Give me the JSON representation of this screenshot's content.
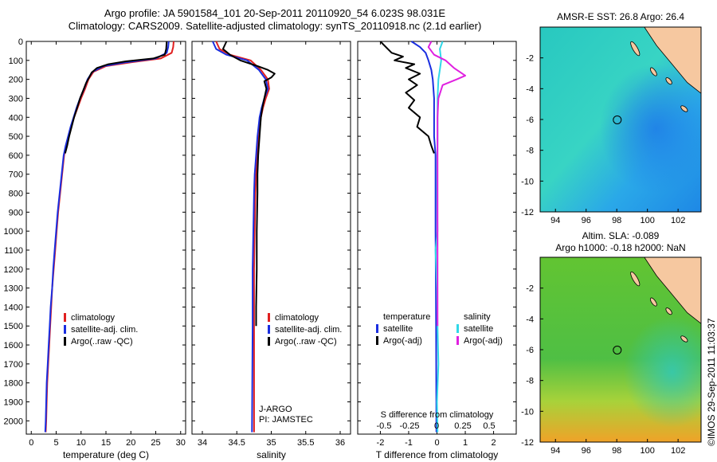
{
  "header": {
    "line1": "Argo profile: JA 5901584_101 20-Sep-2011 20110920_54 6.023S 98.031E",
    "line2": "Climatology: CARS2009. Satellite-adjusted climatology: synTS_20110918.nc (2.1d earlier)"
  },
  "watermark": "©IMOS 29-Sep-2011 11:03:37",
  "colors": {
    "climatology": "#e02020",
    "satellite": "#1a2ee0",
    "argo": "#000000",
    "sal_satellite": "#30d8e8",
    "sal_argo": "#e020e0",
    "land": "#f6c8a0"
  },
  "chart_data": [
    {
      "type": "line",
      "id": "temperature",
      "xlabel": "temperature (deg C)",
      "xlim": [
        -1,
        31
      ],
      "xticks": [
        0,
        5,
        10,
        15,
        20,
        25,
        30
      ],
      "ylim": [
        2070,
        0
      ],
      "yticks": [
        0,
        100,
        200,
        300,
        400,
        500,
        600,
        700,
        800,
        900,
        1000,
        1100,
        1200,
        1300,
        1400,
        1500,
        1600,
        1700,
        1800,
        1900,
        2000
      ],
      "legend": [
        "climatology",
        "satellite-adj. clim.",
        "Argo(..raw -QC)"
      ],
      "series": [
        {
          "name": "climatology",
          "color_key": "climatology",
          "points": [
            [
              28.6,
              0
            ],
            [
              28.5,
              30
            ],
            [
              28.2,
              60
            ],
            [
              26,
              90
            ],
            [
              20,
              110
            ],
            [
              15,
              130
            ],
            [
              12.5,
              160
            ],
            [
              11.5,
              200
            ],
            [
              10.8,
              250
            ],
            [
              10,
              300
            ],
            [
              9.3,
              350
            ],
            [
              8.6,
              400
            ],
            [
              8,
              450
            ],
            [
              7.5,
              500
            ],
            [
              7,
              550
            ],
            [
              6.6,
              600
            ],
            [
              6.2,
              700
            ],
            [
              5.8,
              800
            ],
            [
              5.4,
              900
            ],
            [
              5.1,
              1000
            ],
            [
              4.8,
              1100
            ],
            [
              4.5,
              1200
            ],
            [
              4.2,
              1300
            ],
            [
              4,
              1400
            ],
            [
              3.8,
              1500
            ],
            [
              3.6,
              1600
            ],
            [
              3.4,
              1700
            ],
            [
              3.2,
              1800
            ],
            [
              3.1,
              1900
            ],
            [
              3,
              2000
            ],
            [
              2.9,
              2060
            ]
          ]
        },
        {
          "name": "satellite-adj. clim.",
          "color_key": "satellite",
          "points": [
            [
              27.6,
              0
            ],
            [
              27.5,
              30
            ],
            [
              27.2,
              60
            ],
            [
              25,
              90
            ],
            [
              19,
              110
            ],
            [
              14.5,
              130
            ],
            [
              12.3,
              160
            ],
            [
              11.3,
              200
            ],
            [
              10.6,
              250
            ],
            [
              9.8,
              300
            ],
            [
              9.1,
              350
            ],
            [
              8.5,
              400
            ],
            [
              7.9,
              450
            ],
            [
              7.4,
              500
            ],
            [
              6.9,
              550
            ],
            [
              6.5,
              600
            ],
            [
              6.1,
              700
            ],
            [
              5.7,
              800
            ],
            [
              5.3,
              900
            ],
            [
              5,
              1000
            ],
            [
              4.7,
              1100
            ],
            [
              4.4,
              1200
            ],
            [
              4.2,
              1300
            ],
            [
              3.9,
              1400
            ],
            [
              3.7,
              1500
            ],
            [
              3.5,
              1600
            ],
            [
              3.3,
              1700
            ],
            [
              3.1,
              1800
            ],
            [
              3,
              1900
            ],
            [
              2.9,
              2000
            ],
            [
              2.8,
              2060
            ]
          ]
        },
        {
          "name": "Argo",
          "color_key": "argo",
          "points": [
            [
              27.2,
              0
            ],
            [
              27.1,
              40
            ],
            [
              26.8,
              70
            ],
            [
              24.5,
              90
            ],
            [
              19,
              105
            ],
            [
              15.5,
              120
            ],
            [
              13.2,
              140
            ],
            [
              12.1,
              165
            ],
            [
              11.6,
              190
            ],
            [
              11,
              220
            ],
            [
              10.4,
              260
            ],
            [
              9.8,
              300
            ],
            [
              9.2,
              350
            ],
            [
              8.6,
              400
            ],
            [
              8.1,
              450
            ],
            [
              7.6,
              500
            ],
            [
              7.2,
              550
            ],
            [
              6.8,
              590
            ]
          ]
        }
      ]
    },
    {
      "type": "line",
      "id": "salinity",
      "xlabel": "salinity",
      "xlim": [
        33.85,
        36.15
      ],
      "xticks": [
        34,
        34.5,
        35,
        35.5,
        36
      ],
      "ylim": [
        2070,
        0
      ],
      "legend": [
        "climatology",
        "satellite-adj. clim.",
        "Argo(..raw -QC)"
      ],
      "annotations": [
        "J-ARGO",
        "PI: JAMSTEC"
      ],
      "series": [
        {
          "name": "climatology",
          "color_key": "climatology",
          "points": [
            [
              34.2,
              0
            ],
            [
              34.25,
              40
            ],
            [
              34.4,
              70
            ],
            [
              34.7,
              100
            ],
            [
              34.85,
              150
            ],
            [
              34.95,
              200
            ],
            [
              34.97,
              250
            ],
            [
              34.92,
              300
            ],
            [
              34.88,
              350
            ],
            [
              34.85,
              400
            ],
            [
              34.82,
              500
            ],
            [
              34.8,
              600
            ],
            [
              34.78,
              700
            ],
            [
              34.77,
              800
            ],
            [
              34.76,
              1000
            ],
            [
              34.75,
              1200
            ],
            [
              34.75,
              1500
            ],
            [
              34.75,
              2060
            ]
          ]
        },
        {
          "name": "satellite-adj. clim.",
          "color_key": "satellite",
          "points": [
            [
              34.15,
              0
            ],
            [
              34.2,
              40
            ],
            [
              34.35,
              70
            ],
            [
              34.65,
              100
            ],
            [
              34.82,
              150
            ],
            [
              34.92,
              200
            ],
            [
              34.95,
              250
            ],
            [
              34.9,
              300
            ],
            [
              34.86,
              350
            ],
            [
              34.83,
              400
            ],
            [
              34.8,
              500
            ],
            [
              34.78,
              600
            ],
            [
              34.76,
              700
            ],
            [
              34.75,
              800
            ],
            [
              34.74,
              1000
            ],
            [
              34.73,
              1200
            ],
            [
              34.73,
              1500
            ],
            [
              34.72,
              2060
            ]
          ]
        },
        {
          "name": "Argo",
          "color_key": "argo",
          "points": [
            [
              34.35,
              0
            ],
            [
              34.3,
              40
            ],
            [
              34.4,
              70
            ],
            [
              34.55,
              100
            ],
            [
              34.8,
              130
            ],
            [
              34.95,
              150
            ],
            [
              35.05,
              170
            ],
            [
              35.0,
              190
            ],
            [
              34.9,
              210
            ],
            [
              34.93,
              250
            ],
            [
              34.9,
              300
            ],
            [
              34.87,
              350
            ],
            [
              34.85,
              400
            ],
            [
              34.83,
              500
            ],
            [
              34.81,
              600
            ],
            [
              34.8,
              700
            ],
            [
              34.8,
              800
            ],
            [
              34.79,
              1000
            ],
            [
              34.79,
              1200
            ],
            [
              34.78,
              1400
            ],
            [
              34.78,
              1500
            ]
          ]
        }
      ]
    },
    {
      "type": "line",
      "id": "differences",
      "xlabel": "T difference from climatology",
      "xlabel_top": "S difference from climatology",
      "xlim": [
        -2.8,
        2.8
      ],
      "xticks": [
        -2,
        -1,
        0,
        1,
        2
      ],
      "xticks_s_positions": [
        -2,
        -1,
        0,
        1,
        2
      ],
      "xticks_s_labels": [
        "-0.5",
        "-0.25",
        "0",
        "0.25",
        "0.5"
      ],
      "ylim": [
        2070,
        0
      ],
      "legend_temperature": {
        "heading": "temperature",
        "items": [
          "satellite",
          "Argo(-adj)"
        ]
      },
      "legend_salinity": {
        "heading": "salinity",
        "items": [
          "satellite",
          "Argo(-adj)"
        ]
      },
      "series": [
        {
          "name": "T satellite",
          "color_key": "satellite",
          "points": [
            [
              -0.9,
              0
            ],
            [
              -0.6,
              30
            ],
            [
              -0.4,
              60
            ],
            [
              -0.3,
              100
            ],
            [
              -0.2,
              150
            ],
            [
              -0.15,
              200
            ],
            [
              -0.1,
              300
            ],
            [
              -0.1,
              400
            ],
            [
              -0.1,
              500
            ],
            [
              -0.05,
              600
            ],
            [
              -0.05,
              800
            ],
            [
              -0.05,
              1000
            ],
            [
              -0.03,
              1500
            ],
            [
              -0.02,
              2060
            ]
          ]
        },
        {
          "name": "T Argo",
          "color_key": "argo",
          "points": [
            [
              -2,
              0
            ],
            [
              -1.6,
              60
            ],
            [
              -1.2,
              80
            ],
            [
              -1.5,
              100
            ],
            [
              -0.8,
              120
            ],
            [
              -1.1,
              140
            ],
            [
              -0.6,
              170
            ],
            [
              -1.0,
              200
            ],
            [
              -0.7,
              230
            ],
            [
              -1.1,
              270
            ],
            [
              -0.8,
              310
            ],
            [
              -1.0,
              350
            ],
            [
              -0.6,
              400
            ],
            [
              -0.7,
              450
            ],
            [
              -0.3,
              500
            ],
            [
              -0.2,
              550
            ],
            [
              -0.1,
              590
            ]
          ]
        },
        {
          "name": "S satellite",
          "color_key": "sal_satellite",
          "points": [
            [
              0.2,
              0
            ],
            [
              0.1,
              40
            ],
            [
              0.15,
              100
            ],
            [
              0.1,
              150
            ],
            [
              0.05,
              200
            ],
            [
              0.02,
              300
            ],
            [
              0.02,
              500
            ],
            [
              0,
              800
            ],
            [
              0.02,
              1000
            ],
            [
              -0.05,
              1100
            ],
            [
              0,
              1300
            ],
            [
              0.02,
              1500
            ],
            [
              0.05,
              1700
            ],
            [
              0,
              1900
            ],
            [
              0.02,
              2060
            ]
          ]
        },
        {
          "name": "S Argo",
          "color_key": "sal_argo",
          "points": [
            [
              -0.2,
              0
            ],
            [
              -0.3,
              30
            ],
            [
              -0.1,
              70
            ],
            [
              0.3,
              100
            ],
            [
              0.6,
              140
            ],
            [
              1.0,
              180
            ],
            [
              0.7,
              200
            ],
            [
              0.2,
              230
            ],
            [
              0.05,
              300
            ],
            [
              0.02,
              400
            ],
            [
              0.02,
              600
            ],
            [
              0.02,
              800
            ],
            [
              0.02,
              1000
            ],
            [
              0.02,
              1200
            ],
            [
              0.02,
              1400
            ],
            [
              0.02,
              1500
            ]
          ]
        }
      ]
    },
    {
      "type": "heatmap",
      "id": "sst_map",
      "title": "AMSR-E SST: 26.8  Argo: 26.4",
      "xticks": [
        94,
        96,
        98,
        100,
        102
      ],
      "yticks": [
        -2,
        -4,
        -6,
        -8,
        -10,
        -12
      ],
      "xlim": [
        93,
        103.5
      ],
      "ylim": [
        -12,
        0
      ],
      "marker": {
        "lon": 98.031,
        "lat": -6.023
      }
    },
    {
      "type": "heatmap",
      "id": "sla_map",
      "title": "Altim. SLA: -0.089",
      "subtitle": "Argo h1000: -0.18 h2000: NaN",
      "xticks": [
        94,
        96,
        98,
        100,
        102
      ],
      "yticks": [
        -2,
        -4,
        -6,
        -8,
        -10,
        -12
      ],
      "xlim": [
        93,
        103.5
      ],
      "ylim": [
        -12,
        0
      ],
      "marker": {
        "lon": 98.031,
        "lat": -6.023
      }
    }
  ]
}
